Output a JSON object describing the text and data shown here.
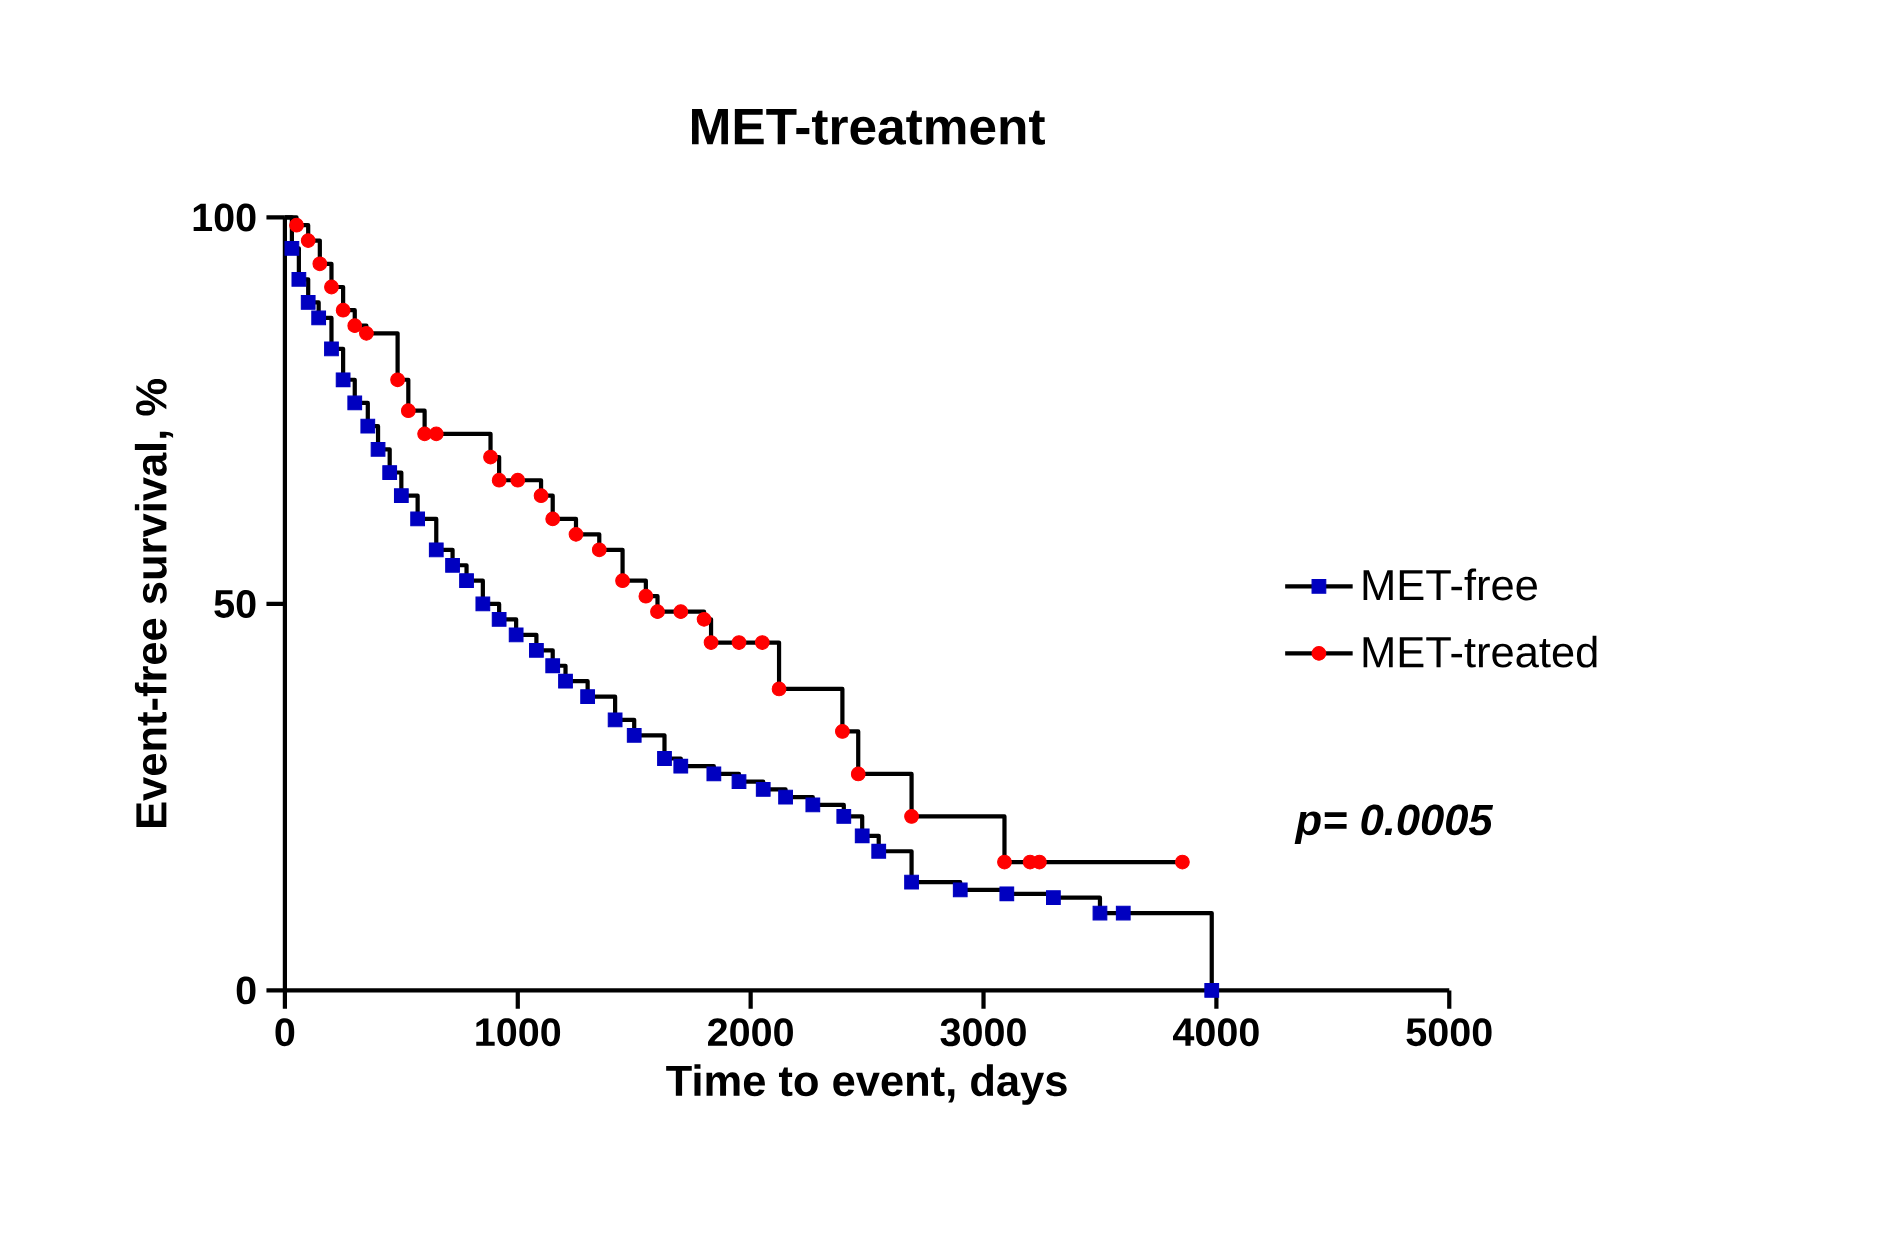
{
  "chart_data": {
    "type": "step",
    "title": "MET-treatment",
    "xlabel": "Time to event, days",
    "ylabel": "Event-free survival, %",
    "xlim": [
      0,
      5000
    ],
    "ylim": [
      0,
      100
    ],
    "xticks": [
      0,
      1000,
      2000,
      3000,
      4000,
      5000
    ],
    "yticks": [
      0,
      50,
      100
    ],
    "legend": "right",
    "annotations": [
      "p= 0.0005"
    ],
    "series": [
      {
        "color": "#000000",
        "x": [
          0,
          30,
          60,
          100,
          145,
          200,
          250,
          300,
          356,
          400,
          450,
          500,
          570,
          650,
          720,
          780,
          850,
          920,
          993,
          1080,
          1150,
          1205,
          1300,
          1418,
          1500,
          1630,
          1700,
          1842,
          1950,
          2054,
          2150,
          2267,
          2400,
          2479,
          2550,
          2691,
          2900,
          3100,
          3300,
          3500,
          3600,
          3980
        ],
        "values": [
          100,
          96,
          92,
          89,
          87,
          83,
          79,
          76,
          73,
          70,
          67,
          64,
          61,
          57,
          55,
          53,
          50,
          48,
          46,
          44,
          42,
          40,
          38,
          35,
          33,
          30,
          29,
          28,
          27,
          26,
          25,
          24,
          22.5,
          20,
          18,
          14,
          13,
          12.5,
          12,
          10,
          10,
          0
        ]
      },
      {
        "color": "#000000",
        "x": [
          0,
          50,
          100,
          150,
          200,
          250,
          300,
          350,
          400,
          484,
          530,
          600,
          650,
          700,
          883,
          920,
          1000,
          1100,
          1150,
          1250,
          1350,
          1450,
          1550,
          1600,
          1700,
          1800,
          1830,
          2122,
          2394,
          2462,
          2691,
          3090,
          3854
        ],
        "values": [
          100,
          99,
          97,
          94,
          91,
          88,
          86,
          85,
          85,
          79,
          75,
          72,
          72,
          72,
          69,
          66,
          66,
          64,
          61,
          59,
          57,
          53,
          51,
          49,
          49,
          48,
          45,
          39,
          33.5,
          28,
          22.5,
          16.6,
          16.6
        ]
      },
      {
        "type": "scatter",
        "name": "MET-free",
        "color": "#0000c0",
        "marker": "square",
        "x": [
          30,
          60,
          100,
          145,
          200,
          250,
          300,
          356,
          400,
          450,
          500,
          570,
          650,
          720,
          780,
          850,
          920,
          993,
          1080,
          1150,
          1205,
          1300,
          1418,
          1500,
          1630,
          1700,
          1842,
          1950,
          2054,
          2150,
          2267,
          2400,
          2479,
          2550,
          2691,
          2900,
          3100,
          3300,
          3500,
          3600,
          3980
        ],
        "values": [
          96,
          92,
          89,
          87,
          83,
          79,
          76,
          73,
          70,
          67,
          64,
          61,
          57,
          55,
          53,
          50,
          48,
          46,
          44,
          42,
          40,
          38,
          35,
          33,
          30,
          29,
          28,
          27,
          26,
          25,
          24,
          22.5,
          20,
          18,
          14,
          13,
          12.5,
          12,
          10,
          10,
          0
        ]
      },
      {
        "type": "scatter",
        "name": "MET-treated",
        "color": "#ff0000",
        "marker": "circle",
        "x": [
          50,
          100,
          150,
          200,
          250,
          300,
          350,
          484,
          530,
          600,
          650,
          883,
          920,
          1000,
          1100,
          1150,
          1250,
          1350,
          1450,
          1550,
          1600,
          1700,
          1800,
          1830,
          1950,
          2050,
          2122,
          2394,
          2462,
          2691,
          3090,
          3200,
          3240,
          3854
        ],
        "values": [
          99,
          97,
          94,
          91,
          88,
          86,
          85,
          79,
          75,
          72,
          72,
          69,
          66,
          66,
          64,
          61,
          59,
          57,
          53,
          51,
          49,
          49,
          48,
          45,
          45,
          45,
          39,
          33.5,
          28,
          22.5,
          16.6,
          16.6,
          16.6,
          16.6
        ]
      }
    ]
  }
}
